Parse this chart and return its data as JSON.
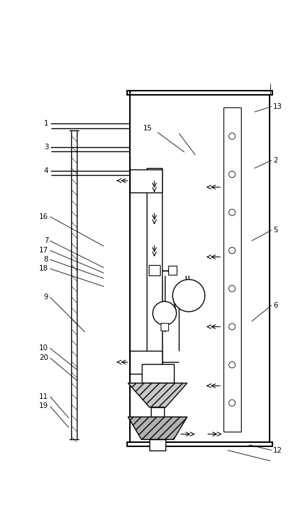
{
  "bg_color": "#ffffff",
  "fig_width": 4.41,
  "fig_height": 7.6,
  "dpi": 100
}
